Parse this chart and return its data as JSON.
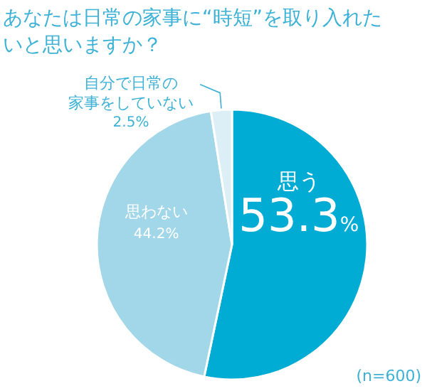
{
  "chart_data": {
    "type": "pie",
    "title": "あなたは日常の家事に“時短”を取り入れたいと思いますか？",
    "categories": [
      "思う",
      "思わない",
      "自分で日常の家事をしていない"
    ],
    "values": [
      53.3,
      44.2,
      2.5
    ],
    "value_labels": [
      "53.3%",
      "44.2%",
      "2.5%"
    ],
    "colors": [
      "#00acd3",
      "#a2d7e9",
      "#ddeff6"
    ],
    "annotations": [
      "(n=600)"
    ]
  }
}
